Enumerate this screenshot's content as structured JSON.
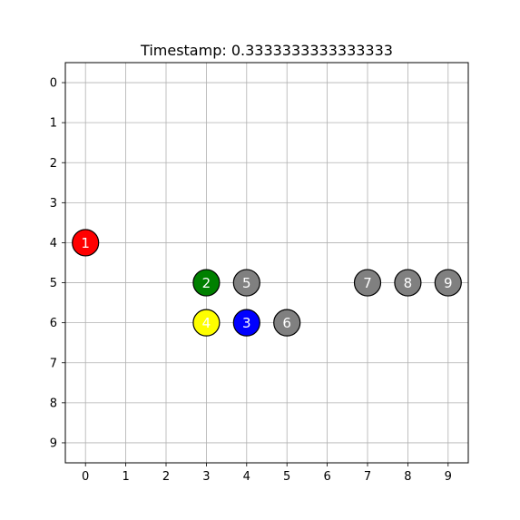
{
  "chart_data": {
    "type": "scatter",
    "title": "Timestamp: 0.3333333333333333",
    "xlabel": "",
    "ylabel": "",
    "xlim": [
      -0.5,
      9.5
    ],
    "ylim": [
      9.5,
      -0.5
    ],
    "y_axis_inverted": true,
    "grid": true,
    "x_ticks": [
      "0",
      "1",
      "2",
      "3",
      "4",
      "5",
      "6",
      "7",
      "8",
      "9"
    ],
    "y_ticks": [
      "0",
      "1",
      "2",
      "3",
      "4",
      "5",
      "6",
      "7",
      "8",
      "9"
    ],
    "points": [
      {
        "label": "1",
        "x": 0,
        "y": 4,
        "color": "#ff0000"
      },
      {
        "label": "2",
        "x": 3,
        "y": 5,
        "color": "#008000"
      },
      {
        "label": "3",
        "x": 4,
        "y": 6,
        "color": "#0000ff"
      },
      {
        "label": "4",
        "x": 3,
        "y": 6,
        "color": "#ffff00"
      },
      {
        "label": "5",
        "x": 4,
        "y": 5,
        "color": "#808080"
      },
      {
        "label": "6",
        "x": 5,
        "y": 6,
        "color": "#808080"
      },
      {
        "label": "7",
        "x": 7,
        "y": 5,
        "color": "#808080"
      },
      {
        "label": "8",
        "x": 8,
        "y": 5,
        "color": "#808080"
      },
      {
        "label": "9",
        "x": 9,
        "y": 5,
        "color": "#808080"
      }
    ]
  }
}
